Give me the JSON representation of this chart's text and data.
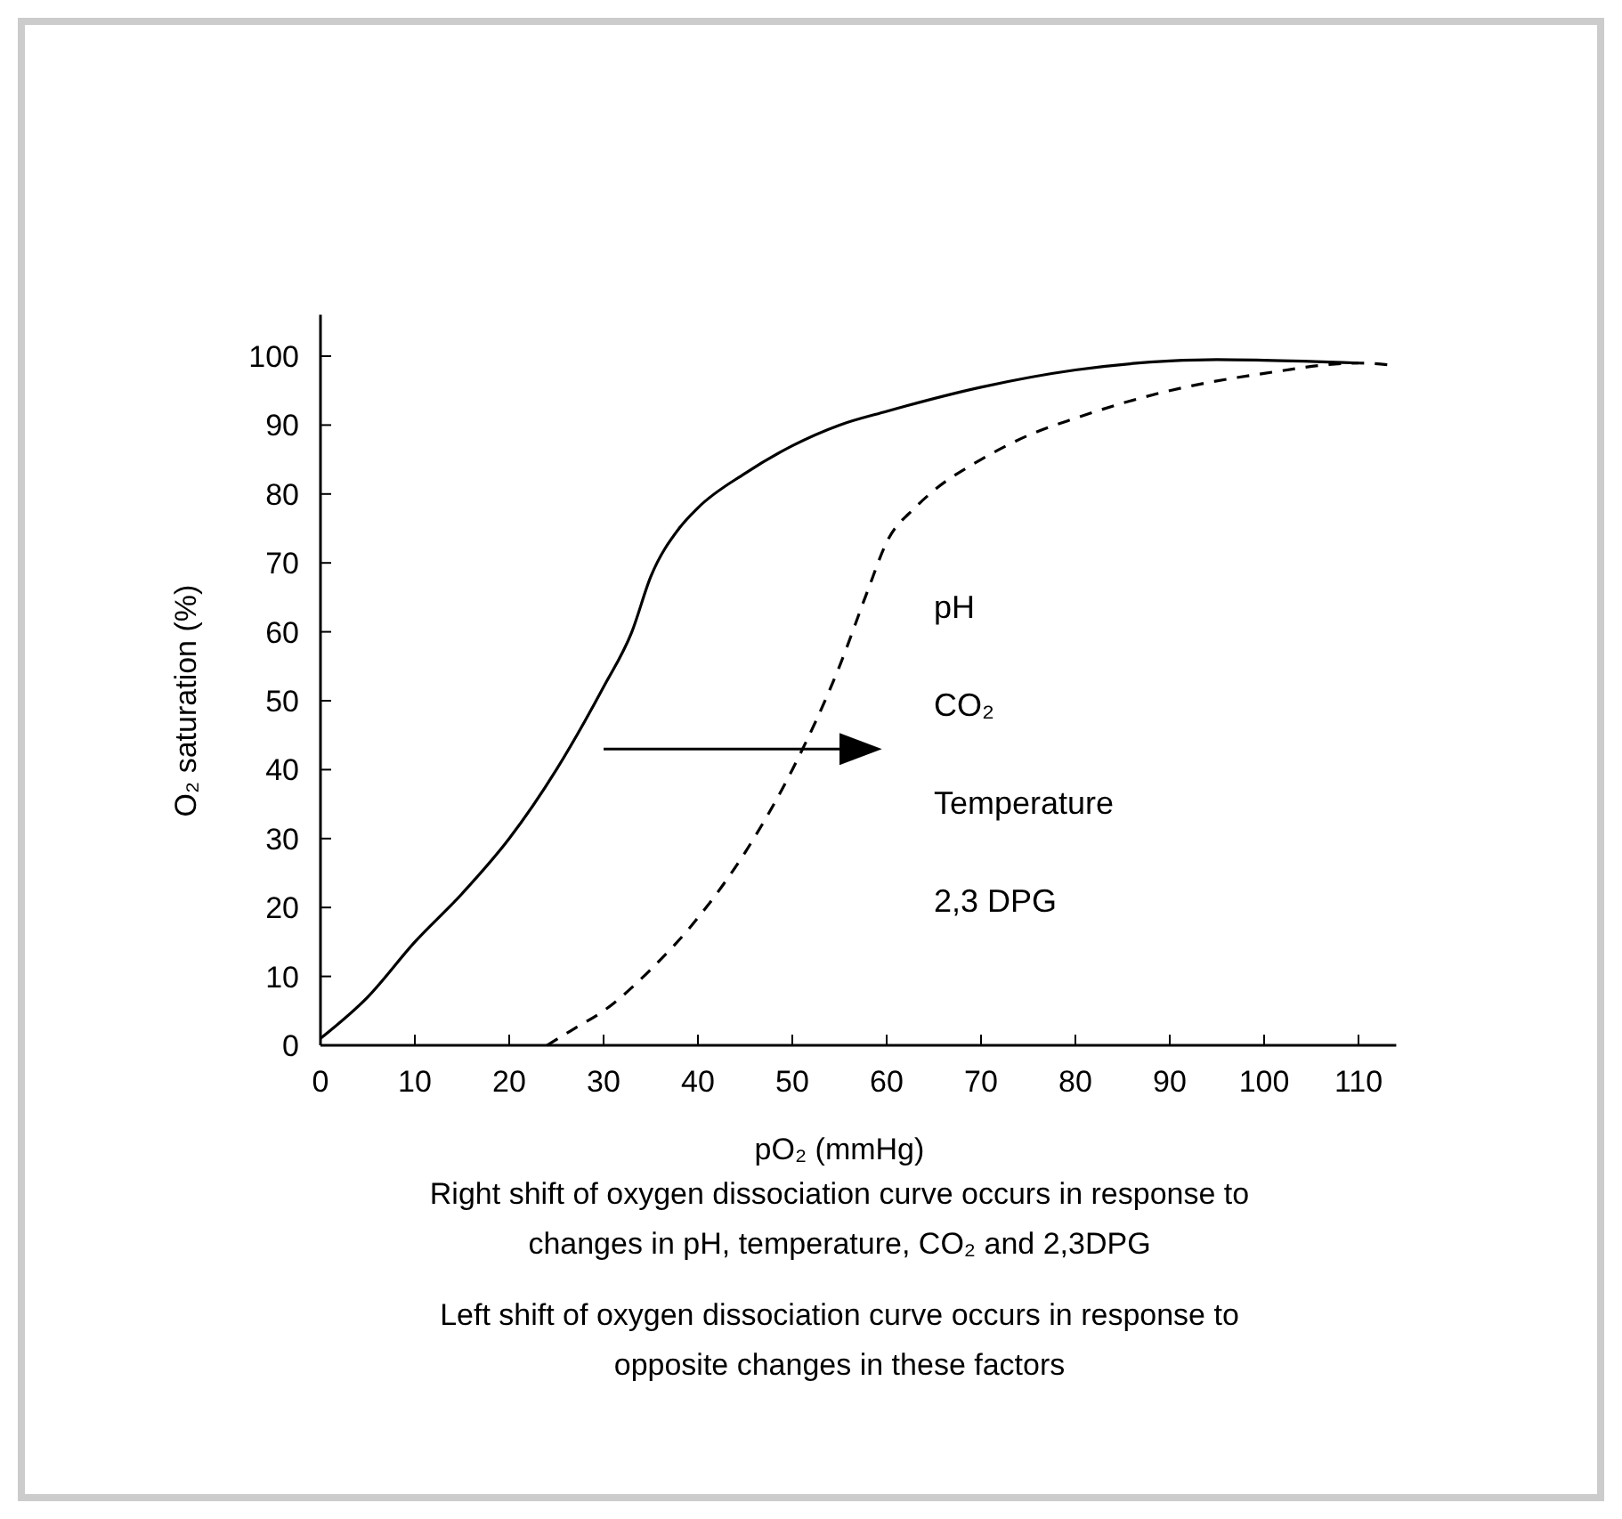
{
  "chart_data": {
    "type": "line",
    "xlabel": "pO₂ (mmHg)",
    "ylabel": "O₂ saturation (%)",
    "xlim": [
      0,
      114
    ],
    "xticks": [
      0,
      10,
      20,
      30,
      40,
      50,
      60,
      70,
      80,
      90,
      100,
      110
    ],
    "ylim": [
      0,
      106
    ],
    "yticks": [
      0,
      10,
      20,
      30,
      40,
      50,
      60,
      70,
      80,
      90,
      100
    ],
    "grid": false,
    "series": [
      {
        "color": "#000000",
        "line_style": "solid",
        "x": [
          0,
          5,
          10,
          15,
          20,
          25,
          28,
          30,
          33,
          35,
          38,
          40,
          45,
          50,
          55,
          60,
          70,
          80,
          90,
          95,
          100,
          110
        ],
        "values": [
          1,
          7,
          15,
          22,
          30,
          40,
          47,
          52,
          60,
          68,
          75,
          78,
          83,
          87,
          90,
          92,
          95.5,
          98,
          99.3,
          99.5,
          99.4,
          99
        ]
      },
      {
        "color": "#000000",
        "line_style": "dashed",
        "x": [
          24,
          27,
          30,
          35,
          40,
          45,
          50,
          55,
          58,
          60,
          63,
          65,
          70,
          75,
          80,
          90,
          100,
          110,
          113.5
        ],
        "values": [
          0,
          2.5,
          5,
          11,
          18.5,
          28,
          40,
          55,
          66,
          73,
          78,
          80.5,
          85,
          88.5,
          91,
          95,
          97.5,
          99,
          98.7
        ]
      }
    ],
    "annotations": [
      "pH",
      "CO₂",
      "Temperature",
      "2,3 DPG",
      "Right shift of oxygen dissociation curve occurs in response to changes in pH, temperature, CO₂ and 2,3DPG",
      "Left shift of oxygen dissociation curve occurs in response to opposite changes in these factors"
    ]
  }
}
